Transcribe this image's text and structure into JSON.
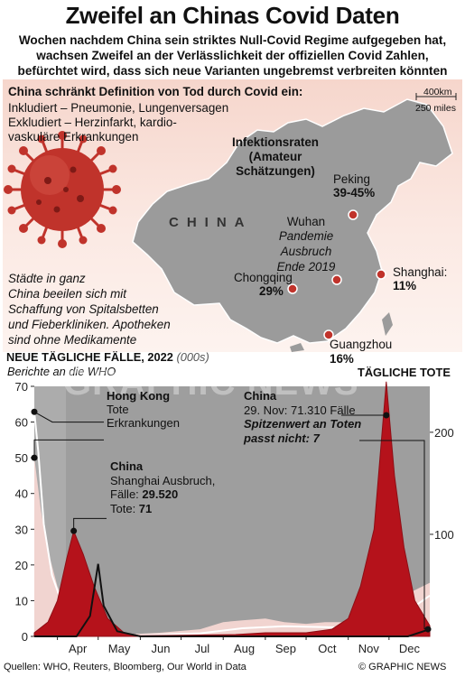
{
  "header": {
    "title": "Zweifel an Chinas Covid Daten",
    "subtitle_lines": [
      "Wochen nachdem China sein striktes Null-Covid Regime aufgegeben hat,",
      "wachsen Zweifel an der Verlässlichkeit der offiziellen Covid Zahlen,",
      "befürchtet wird, dass sich neue Varianten ungebremst verbreiten könnten"
    ]
  },
  "map": {
    "definition_title": "China schränkt Definition von Tod durch Covid ein:",
    "definition_lines": [
      "Inkludiert – Pneumonie, Lungenversagen",
      "Exkludiert – Herzinfarkt, kardio-",
      "vaskuläre Erkrankungen"
    ],
    "infection_title_lines": [
      "Infektionsraten",
      "(Amateur",
      "Schätzungen)"
    ],
    "scale_km": "400km",
    "scale_miles": "250 miles",
    "country_label": "CHINA",
    "cities": [
      {
        "name": "Peking",
        "rate": "39-45%"
      },
      {
        "name": "Wuhan",
        "rate": ""
      },
      {
        "name": "Chongqing",
        "rate": "29%"
      },
      {
        "name": "Shanghai:",
        "rate": "11%"
      },
      {
        "name": "Guangzhou",
        "rate": "16%"
      }
    ],
    "wuhan_note_lines": [
      "Pandemie",
      "Ausbruch",
      "Ende 2019"
    ],
    "cities_note_lines": [
      "Städte in ganz",
      "China beeilen sich mit",
      "Schaffung von Spitalsbetten",
      "und Fieberkliniken. Apotheken",
      "sind ohne Medikamente"
    ],
    "virus_icon": "coronavirus-icon",
    "colors": {
      "land": "#9a9a9a",
      "virus": "#c0332b",
      "dot": "#c0332b"
    }
  },
  "chart_section": {
    "title": "NEUE TÄGLICHE FÄLLE, 2022",
    "units": "(000s)",
    "subtitle": "Berichte an die WHO",
    "right_axis_title": "TÄGLICHE TOTE"
  },
  "annotations": {
    "hongkong_title": "Hong Kong",
    "hongkong_lines": [
      "Tote",
      "Erkrankungen"
    ],
    "shanghai_title": "China",
    "shanghai_lines": [
      "Shanghai Ausbruch,"
    ],
    "shanghai_cases_label": "Fälle: ",
    "shanghai_cases_value": "29.520",
    "shanghai_deaths_label": "Tote: ",
    "shanghai_deaths_value": "71",
    "china_title": "China",
    "china_line": "29. Nov: 71.310 Fälle",
    "china_peak_lines": [
      "Spitzenwert an Toten",
      "passt nicht: 7"
    ]
  },
  "footer": {
    "sources": "Quellen: WHO, Reuters, Bloomberg, Our World in Data",
    "copyright": "© GRAPHIC NEWS",
    "watermark": "GRAPHIC NEWS"
  },
  "chart_data": {
    "type": "area",
    "title": "NEUE TÄGLICHE FÄLLE, 2022",
    "ylabel": "(000s)",
    "y2label": "TÄGLICHE TOTE",
    "ylim": [
      0,
      70
    ],
    "y2lim": [
      0,
      245
    ],
    "yticks": [
      0,
      10,
      20,
      30,
      40,
      50,
      60,
      70
    ],
    "y2ticks": [
      100,
      200
    ],
    "x_range": [
      "2022-03-15",
      "2022-12-31"
    ],
    "x_tick_labels": [
      "Apr",
      "May",
      "Jun",
      "Jul",
      "Aug",
      "Sep",
      "Oct",
      "Nov",
      "Dec"
    ],
    "grid": false,
    "series": [
      {
        "name": "Hong Kong Erkrankungen",
        "color": "#f1d4d0",
        "axis": "left",
        "x": [
          "2022-03-15",
          "2022-03-20",
          "2022-03-25",
          "2022-04-01",
          "2022-04-08",
          "2022-04-15",
          "2022-04-22",
          "2022-05-01",
          "2022-05-15",
          "2022-06-15",
          "2022-07-15",
          "2022-08-01",
          "2022-08-15",
          "2022-09-01",
          "2022-09-15",
          "2022-10-01",
          "2022-10-15",
          "2022-11-01",
          "2022-11-15",
          "2022-12-01",
          "2022-12-15",
          "2022-12-31"
        ],
        "values": [
          50,
          35,
          24,
          14,
          7,
          3,
          1.5,
          0.7,
          0.4,
          1,
          2,
          4,
          4.5,
          5,
          4,
          3.5,
          4,
          4,
          5,
          9,
          12,
          15
        ]
      },
      {
        "name": "Hong Kong Tote",
        "color": "#ffffff",
        "axis": "right",
        "x": [
          "2022-03-15",
          "2022-03-18",
          "2022-03-22",
          "2022-03-28",
          "2022-04-05",
          "2022-04-12",
          "2022-04-20",
          "2022-05-01",
          "2022-06-01",
          "2022-07-15",
          "2022-08-15",
          "2022-09-15",
          "2022-10-15",
          "2022-11-15",
          "2022-12-15",
          "2022-12-31"
        ],
        "values": [
          220,
          180,
          110,
          60,
          30,
          12,
          5,
          2,
          1,
          3,
          8,
          10,
          9,
          8,
          25,
          40
        ]
      },
      {
        "name": "China Fälle",
        "color": "#b5121b",
        "axis": "left",
        "x": [
          "2022-03-15",
          "2022-03-25",
          "2022-04-01",
          "2022-04-08",
          "2022-04-13",
          "2022-04-20",
          "2022-04-28",
          "2022-05-08",
          "2022-05-20",
          "2022-06-01",
          "2022-08-10",
          "2022-09-01",
          "2022-10-01",
          "2022-10-20",
          "2022-11-01",
          "2022-11-10",
          "2022-11-20",
          "2022-11-29",
          "2022-12-05",
          "2022-12-12",
          "2022-12-20",
          "2022-12-31"
        ],
        "values": [
          1,
          4,
          10,
          22,
          29.52,
          23,
          14,
          5,
          1,
          0.2,
          0.5,
          1,
          1,
          2,
          5,
          14,
          30,
          71.31,
          45,
          25,
          10,
          3
        ]
      },
      {
        "name": "China Tote",
        "color": "#111111",
        "axis": "right",
        "x": [
          "2022-03-15",
          "2022-04-15",
          "2022-04-25",
          "2022-05-01",
          "2022-05-05",
          "2022-05-15",
          "2022-06-01",
          "2022-11-29",
          "2022-12-15",
          "2022-12-31"
        ],
        "values": [
          0,
          0,
          20,
          71,
          30,
          5,
          0,
          0,
          0,
          7
        ]
      }
    ],
    "annotated_points": [
      {
        "label": "Shanghai Ausbruch",
        "x": "2022-04-13",
        "cases": 29.52,
        "deaths": 71
      },
      {
        "label": "29. Nov",
        "x": "2022-11-29",
        "cases": 71.31
      },
      {
        "label": "Spitzenwert an Toten",
        "deaths": 7
      }
    ]
  }
}
